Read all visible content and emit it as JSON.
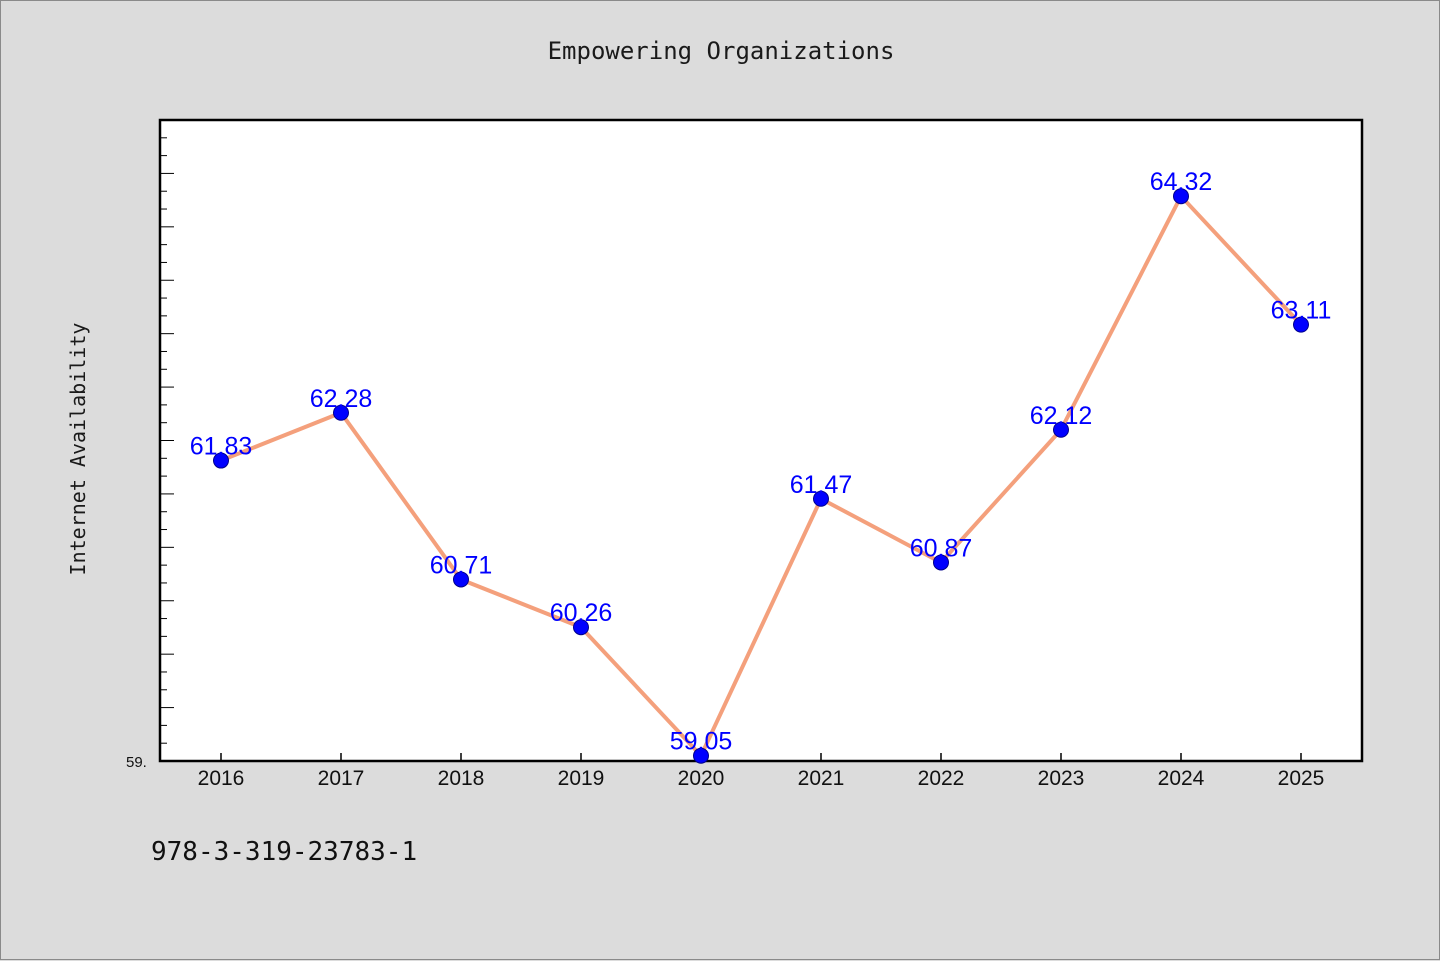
{
  "chart_data": {
    "type": "line",
    "title": "Empowering Organizations",
    "xlabel": "",
    "ylabel": "Internet Availability",
    "categories": [
      "2016",
      "2017",
      "2018",
      "2019",
      "2020",
      "2021",
      "2022",
      "2023",
      "2024",
      "2025"
    ],
    "series": [
      {
        "values": [
          61.83,
          62.28,
          60.71,
          60.26,
          59.05,
          61.47,
          60.87,
          62.12,
          64.32,
          63.11
        ],
        "labels": [
          "61.83",
          "62.28",
          "60.71",
          "60.26",
          "59.05",
          "61.47",
          "60.87",
          "62.12",
          "64.32",
          "63.11"
        ],
        "line_color": "#f4a07c",
        "marker_color": "#0000ff"
      }
    ],
    "ylim": [
      59.0,
      65.0
    ],
    "y_tick_label": "59.",
    "grid": false,
    "legend": "none"
  },
  "footer": {
    "isbn": "978-3-319-23783-1"
  },
  "colors": {
    "background": "#dcdcdc",
    "plot_background": "#ffffff"
  }
}
